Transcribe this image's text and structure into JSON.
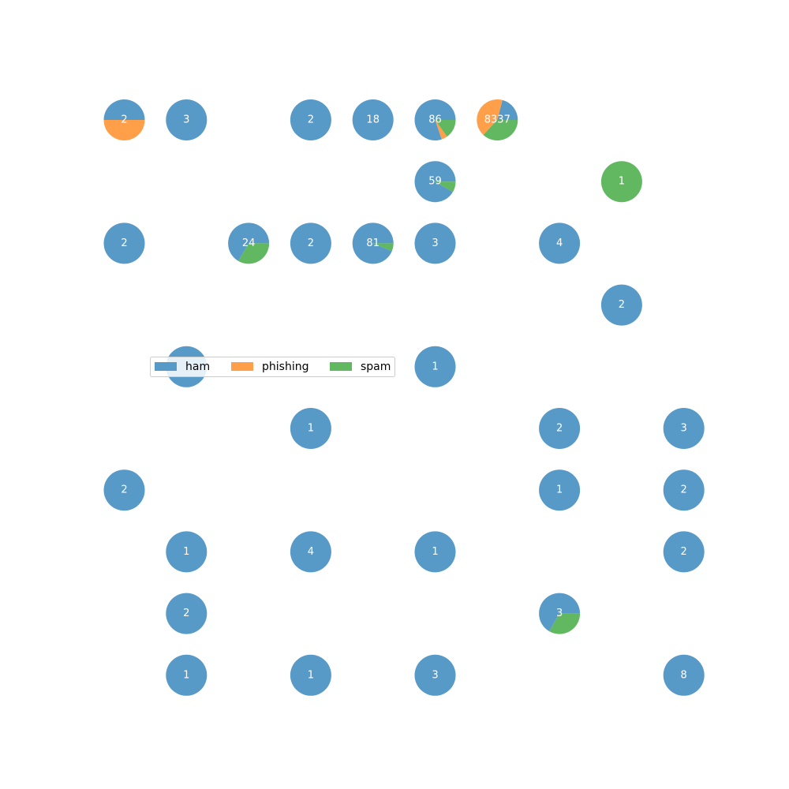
{
  "chart_data": {
    "type": "pie-grid",
    "legend_location": "center-left",
    "categories": [
      "ham",
      "phishing",
      "spam"
    ],
    "colors": {
      "ham": "#5799C7",
      "phishing": "#FF9F4A",
      "spam": "#61B861"
    },
    "grid": {
      "columns": 10,
      "rows": 10
    },
    "cells": [
      {
        "row": 0,
        "col": 0,
        "label": "2",
        "values": {
          "ham": 1,
          "phishing": 1,
          "spam": 0
        }
      },
      {
        "row": 0,
        "col": 1,
        "label": "3",
        "values": {
          "ham": 3,
          "phishing": 0,
          "spam": 0
        }
      },
      {
        "row": 0,
        "col": 3,
        "label": "2",
        "values": {
          "ham": 2,
          "phishing": 0,
          "spam": 0
        }
      },
      {
        "row": 0,
        "col": 4,
        "label": "18",
        "values": {
          "ham": 18,
          "phishing": 0,
          "spam": 0
        }
      },
      {
        "row": 0,
        "col": 5,
        "label": "86",
        "values": {
          "ham": 69,
          "phishing": 4,
          "spam": 13
        }
      },
      {
        "row": 0,
        "col": 6,
        "label": "8337",
        "values": {
          "ham": 1750,
          "phishing": 3503,
          "spam": 3084
        }
      },
      {
        "row": 1,
        "col": 5,
        "label": "59",
        "values": {
          "ham": 54,
          "phishing": 0,
          "spam": 5
        }
      },
      {
        "row": 1,
        "col": 8,
        "label": "1",
        "values": {
          "ham": 0,
          "phishing": 0,
          "spam": 1
        }
      },
      {
        "row": 2,
        "col": 0,
        "label": "2",
        "values": {
          "ham": 2,
          "phishing": 0,
          "spam": 0
        }
      },
      {
        "row": 2,
        "col": 2,
        "label": "24",
        "values": {
          "ham": 16,
          "phishing": 0,
          "spam": 8
        }
      },
      {
        "row": 2,
        "col": 3,
        "label": "2",
        "values": {
          "ham": 2,
          "phishing": 0,
          "spam": 0
        }
      },
      {
        "row": 2,
        "col": 4,
        "label": "81",
        "values": {
          "ham": 76,
          "phishing": 0,
          "spam": 5
        }
      },
      {
        "row": 2,
        "col": 5,
        "label": "3",
        "values": {
          "ham": 3,
          "phishing": 0,
          "spam": 0
        }
      },
      {
        "row": 2,
        "col": 7,
        "label": "4",
        "values": {
          "ham": 4,
          "phishing": 0,
          "spam": 0
        }
      },
      {
        "row": 3,
        "col": 8,
        "label": "2",
        "values": {
          "ham": 2,
          "phishing": 0,
          "spam": 0
        }
      },
      {
        "row": 4,
        "col": 1,
        "label": "",
        "values": {
          "ham": 1,
          "phishing": 0,
          "spam": 0
        }
      },
      {
        "row": 4,
        "col": 5,
        "label": "1",
        "values": {
          "ham": 1,
          "phishing": 0,
          "spam": 0
        }
      },
      {
        "row": 5,
        "col": 3,
        "label": "1",
        "values": {
          "ham": 1,
          "phishing": 0,
          "spam": 0
        }
      },
      {
        "row": 5,
        "col": 7,
        "label": "2",
        "values": {
          "ham": 2,
          "phishing": 0,
          "spam": 0
        }
      },
      {
        "row": 5,
        "col": 9,
        "label": "3",
        "values": {
          "ham": 3,
          "phishing": 0,
          "spam": 0
        }
      },
      {
        "row": 6,
        "col": 0,
        "label": "2",
        "values": {
          "ham": 2,
          "phishing": 0,
          "spam": 0
        }
      },
      {
        "row": 6,
        "col": 7,
        "label": "1",
        "values": {
          "ham": 1,
          "phishing": 0,
          "spam": 0
        }
      },
      {
        "row": 6,
        "col": 9,
        "label": "2",
        "values": {
          "ham": 2,
          "phishing": 0,
          "spam": 0
        }
      },
      {
        "row": 7,
        "col": 1,
        "label": "1",
        "values": {
          "ham": 1,
          "phishing": 0,
          "spam": 0
        }
      },
      {
        "row": 7,
        "col": 3,
        "label": "4",
        "values": {
          "ham": 4,
          "phishing": 0,
          "spam": 0
        }
      },
      {
        "row": 7,
        "col": 5,
        "label": "1",
        "values": {
          "ham": 1,
          "phishing": 0,
          "spam": 0
        }
      },
      {
        "row": 7,
        "col": 9,
        "label": "2",
        "values": {
          "ham": 2,
          "phishing": 0,
          "spam": 0
        }
      },
      {
        "row": 8,
        "col": 1,
        "label": "2",
        "values": {
          "ham": 2,
          "phishing": 0,
          "spam": 0
        }
      },
      {
        "row": 8,
        "col": 7,
        "label": "3",
        "values": {
          "ham": 2,
          "phishing": 0,
          "spam": 1
        }
      },
      {
        "row": 9,
        "col": 1,
        "label": "1",
        "values": {
          "ham": 1,
          "phishing": 0,
          "spam": 0
        }
      },
      {
        "row": 9,
        "col": 3,
        "label": "1",
        "values": {
          "ham": 1,
          "phishing": 0,
          "spam": 0
        }
      },
      {
        "row": 9,
        "col": 5,
        "label": "3",
        "values": {
          "ham": 3,
          "phishing": 0,
          "spam": 0
        }
      },
      {
        "row": 9,
        "col": 9,
        "label": "8",
        "values": {
          "ham": 8,
          "phishing": 0,
          "spam": 0
        }
      }
    ]
  }
}
